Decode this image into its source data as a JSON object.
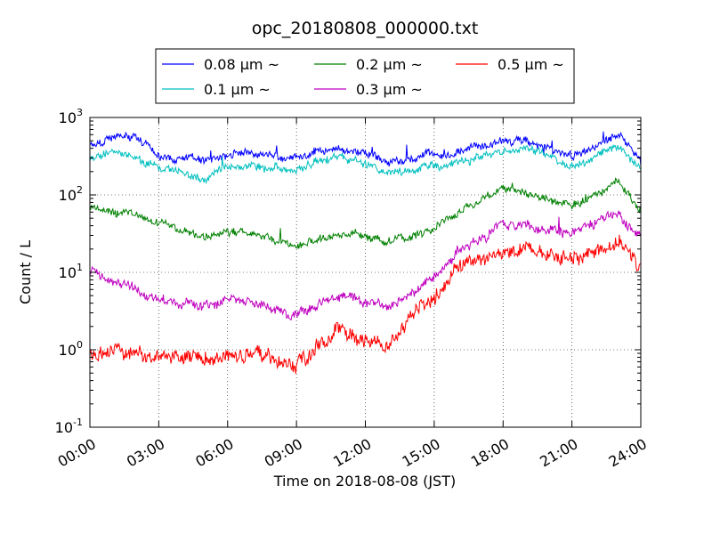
{
  "chart_data": {
    "type": "line",
    "title": "opc_20180808_000000.txt",
    "xlabel": "Time on 2018-08-08 (JST)",
    "ylabel": "Count / L",
    "xlim": [
      "00:00",
      "24:00"
    ],
    "ylim": [
      0.1,
      1000
    ],
    "yscale": "log",
    "grid": true,
    "legend_position": "top-center",
    "x_tick_labels": [
      "00:00",
      "03:00",
      "06:00",
      "09:00",
      "12:00",
      "15:00",
      "18:00",
      "21:00",
      "24:00"
    ],
    "y_tick_labels": [
      {
        "base": "10",
        "exp": "-1"
      },
      {
        "base": "10",
        "exp": "0"
      },
      {
        "base": "10",
        "exp": "1"
      },
      {
        "base": "10",
        "exp": "2"
      },
      {
        "base": "10",
        "exp": "3"
      }
    ],
    "x": [
      "00:00",
      "01:00",
      "02:00",
      "03:00",
      "04:00",
      "05:00",
      "06:00",
      "07:00",
      "08:00",
      "09:00",
      "10:00",
      "11:00",
      "12:00",
      "13:00",
      "14:00",
      "15:00",
      "16:00",
      "17:00",
      "18:00",
      "19:00",
      "20:00",
      "21:00",
      "22:00",
      "23:00",
      "24:00"
    ],
    "series": [
      {
        "name": "0.08 μm ~",
        "color": "#0000ff",
        "values": [
          450,
          560,
          520,
          320,
          310,
          280,
          340,
          360,
          330,
          300,
          360,
          380,
          350,
          280,
          300,
          330,
          360,
          450,
          480,
          500,
          380,
          320,
          420,
          600,
          300
        ]
      },
      {
        "name": "0.1 μm ~",
        "color": "#00bfbf",
        "values": [
          300,
          340,
          300,
          220,
          200,
          160,
          230,
          240,
          220,
          210,
          280,
          300,
          260,
          200,
          200,
          230,
          260,
          330,
          360,
          380,
          300,
          240,
          320,
          450,
          200
        ]
      },
      {
        "name": "0.2 μm ~",
        "color": "#008000",
        "values": [
          70,
          60,
          55,
          42,
          35,
          28,
          35,
          32,
          28,
          22,
          28,
          32,
          30,
          25,
          30,
          40,
          60,
          85,
          120,
          110,
          80,
          70,
          100,
          160,
          60
        ]
      },
      {
        "name": "0.3 μm ~",
        "color": "#bf00bf",
        "values": [
          11,
          8,
          6,
          4.5,
          4,
          3.5,
          4.5,
          4,
          3.5,
          2.8,
          4,
          5,
          4.5,
          3.5,
          5,
          9,
          18,
          28,
          40,
          42,
          35,
          32,
          42,
          55,
          30
        ]
      },
      {
        "name": "0.5 μm ~",
        "color": "#ff0000",
        "values": [
          0.9,
          0.95,
          0.85,
          0.8,
          0.8,
          0.75,
          0.85,
          0.9,
          0.8,
          0.6,
          1.2,
          1.8,
          1.6,
          1.0,
          2.5,
          5,
          10,
          13,
          18,
          20,
          16,
          14,
          19,
          24,
          12
        ]
      }
    ]
  }
}
